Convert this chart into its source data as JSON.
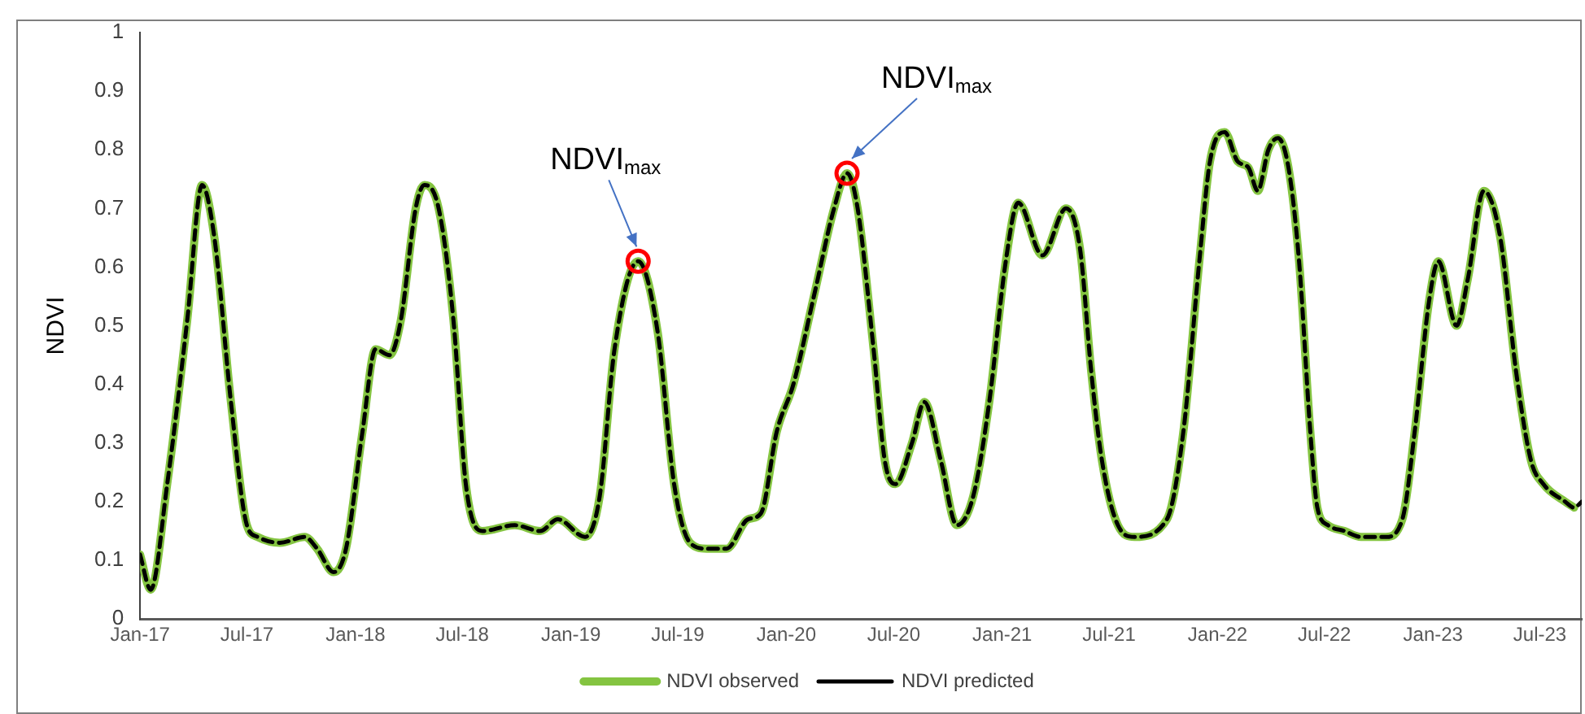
{
  "chart_data": {
    "type": "line",
    "ylabel": "NDVI",
    "legend": "bottom",
    "grid": false,
    "marker": "none",
    "x": [
      "2017-01-01",
      "2017-01-19",
      "2017-02-16",
      "2017-03-22",
      "2017-04-16",
      "2017-05-07",
      "2017-06-04",
      "2017-07-01",
      "2017-07-19",
      "2017-08-26",
      "2017-10-07",
      "2017-10-28",
      "2017-11-25",
      "2017-12-16",
      "2018-01-13",
      "2018-02-04",
      "2018-02-28",
      "2018-03-19",
      "2018-04-13",
      "2018-04-28",
      "2018-05-22",
      "2018-06-16",
      "2018-07-07",
      "2018-08-04",
      "2018-09-28",
      "2018-11-10",
      "2018-12-10",
      "2019-01-25",
      "2019-02-19",
      "2019-03-16",
      "2019-04-25",
      "2019-05-28",
      "2019-06-25",
      "2019-07-22",
      "2019-08-19",
      "2019-09-22",
      "2019-10-28",
      "2019-11-19",
      "2019-12-16",
      "2020-01-13",
      "2020-02-19",
      "2020-03-22",
      "2020-04-13",
      "2020-05-01",
      "2020-05-28",
      "2020-06-16",
      "2020-07-04",
      "2020-08-01",
      "2020-08-22",
      "2020-09-19",
      "2020-10-16",
      "2020-11-13",
      "2020-12-10",
      "2021-01-07",
      "2021-01-28",
      "2021-03-10",
      "2021-04-19",
      "2021-05-13",
      "2021-06-01",
      "2021-06-19",
      "2021-07-16",
      "2021-08-13",
      "2021-10-07",
      "2021-11-04",
      "2021-12-01",
      "2021-12-19",
      "2022-01-13",
      "2022-02-04",
      "2022-02-22",
      "2022-03-10",
      "2022-03-28",
      "2022-04-13",
      "2022-05-01",
      "2022-05-19",
      "2022-06-07",
      "2022-06-19",
      "2022-07-07",
      "2022-08-04",
      "2022-09-01",
      "2022-10-13",
      "2022-11-10",
      "2022-12-01",
      "2022-12-25",
      "2023-01-10",
      "2023-02-10",
      "2023-03-01",
      "2023-03-28",
      "2023-04-25",
      "2023-05-22",
      "2023-06-16",
      "2023-07-07",
      "2023-08-13",
      "2023-08-28",
      "2023-09-10"
    ],
    "series": [
      {
        "name": "NDVI observed",
        "color": "#84c441",
        "line_style": "solid",
        "values": [
          0.11,
          0.05,
          0.23,
          0.51,
          0.74,
          0.65,
          0.37,
          0.16,
          0.14,
          0.13,
          0.14,
          0.12,
          0.08,
          0.12,
          0.32,
          0.46,
          0.45,
          0.51,
          0.7,
          0.74,
          0.7,
          0.51,
          0.23,
          0.15,
          0.16,
          0.15,
          0.17,
          0.14,
          0.21,
          0.46,
          0.61,
          0.49,
          0.23,
          0.13,
          0.12,
          0.12,
          0.17,
          0.18,
          0.32,
          0.4,
          0.56,
          0.7,
          0.76,
          0.7,
          0.46,
          0.27,
          0.23,
          0.3,
          0.37,
          0.27,
          0.16,
          0.21,
          0.37,
          0.61,
          0.71,
          0.62,
          0.7,
          0.63,
          0.42,
          0.27,
          0.16,
          0.14,
          0.17,
          0.32,
          0.61,
          0.78,
          0.83,
          0.78,
          0.77,
          0.73,
          0.8,
          0.82,
          0.77,
          0.61,
          0.32,
          0.19,
          0.16,
          0.15,
          0.14,
          0.14,
          0.17,
          0.32,
          0.54,
          0.61,
          0.5,
          0.58,
          0.73,
          0.65,
          0.42,
          0.27,
          0.23,
          0.2,
          0.19,
          null
        ]
      },
      {
        "name": "NDVI predicted",
        "color": "#000000",
        "line_style": "dashed",
        "values": [
          0.11,
          0.05,
          0.23,
          0.51,
          0.74,
          0.65,
          0.37,
          0.16,
          0.14,
          0.13,
          0.14,
          0.12,
          0.08,
          0.12,
          0.32,
          0.46,
          0.45,
          0.51,
          0.7,
          0.74,
          0.7,
          0.51,
          0.23,
          0.15,
          0.16,
          0.15,
          0.17,
          0.14,
          0.21,
          0.46,
          0.61,
          0.49,
          0.23,
          0.13,
          0.12,
          0.12,
          0.17,
          0.18,
          0.32,
          0.4,
          0.56,
          0.7,
          0.76,
          0.7,
          0.46,
          0.27,
          0.23,
          0.3,
          0.37,
          0.27,
          0.16,
          0.21,
          0.37,
          0.61,
          0.71,
          0.62,
          0.7,
          0.63,
          0.42,
          0.27,
          0.16,
          0.14,
          0.17,
          0.32,
          0.61,
          0.78,
          0.83,
          0.78,
          0.77,
          0.73,
          0.8,
          0.82,
          0.77,
          0.61,
          0.32,
          0.19,
          0.16,
          0.15,
          0.14,
          0.14,
          0.17,
          0.32,
          0.54,
          0.61,
          0.5,
          0.58,
          0.73,
          0.65,
          0.42,
          0.27,
          0.23,
          0.2,
          0.19,
          0.2
        ]
      }
    ],
    "xlim": [
      "2017-01-01",
      "2023-09-10"
    ],
    "xticks": [
      {
        "value": "2017-01-01",
        "label": "Jan-17"
      },
      {
        "value": "2017-07-01",
        "label": "Jul-17"
      },
      {
        "value": "2018-01-01",
        "label": "Jan-18"
      },
      {
        "value": "2018-07-01",
        "label": "Jul-18"
      },
      {
        "value": "2019-01-01",
        "label": "Jan-19"
      },
      {
        "value": "2019-07-01",
        "label": "Jul-19"
      },
      {
        "value": "2020-01-01",
        "label": "Jan-20"
      },
      {
        "value": "2020-07-01",
        "label": "Jul-20"
      },
      {
        "value": "2021-01-01",
        "label": "Jan-21"
      },
      {
        "value": "2021-07-01",
        "label": "Jul-21"
      },
      {
        "value": "2022-01-01",
        "label": "Jan-22"
      },
      {
        "value": "2022-07-01",
        "label": "Jul-22"
      },
      {
        "value": "2023-01-01",
        "label": "Jan-23"
      },
      {
        "value": "2023-07-01",
        "label": "Jul-23"
      }
    ],
    "ylim": [
      0,
      1
    ],
    "yticks": [
      0,
      0.1,
      0.2,
      0.3,
      0.4,
      0.5,
      0.6,
      0.7,
      0.8,
      0.9,
      1
    ],
    "annotations": [
      {
        "text": "NDVI$_{max}$",
        "x": "2019-04-25",
        "y": 0.61
      },
      {
        "text": "NDVI$_{max}$",
        "x": "2020-04-13",
        "y": 0.76
      }
    ]
  }
}
